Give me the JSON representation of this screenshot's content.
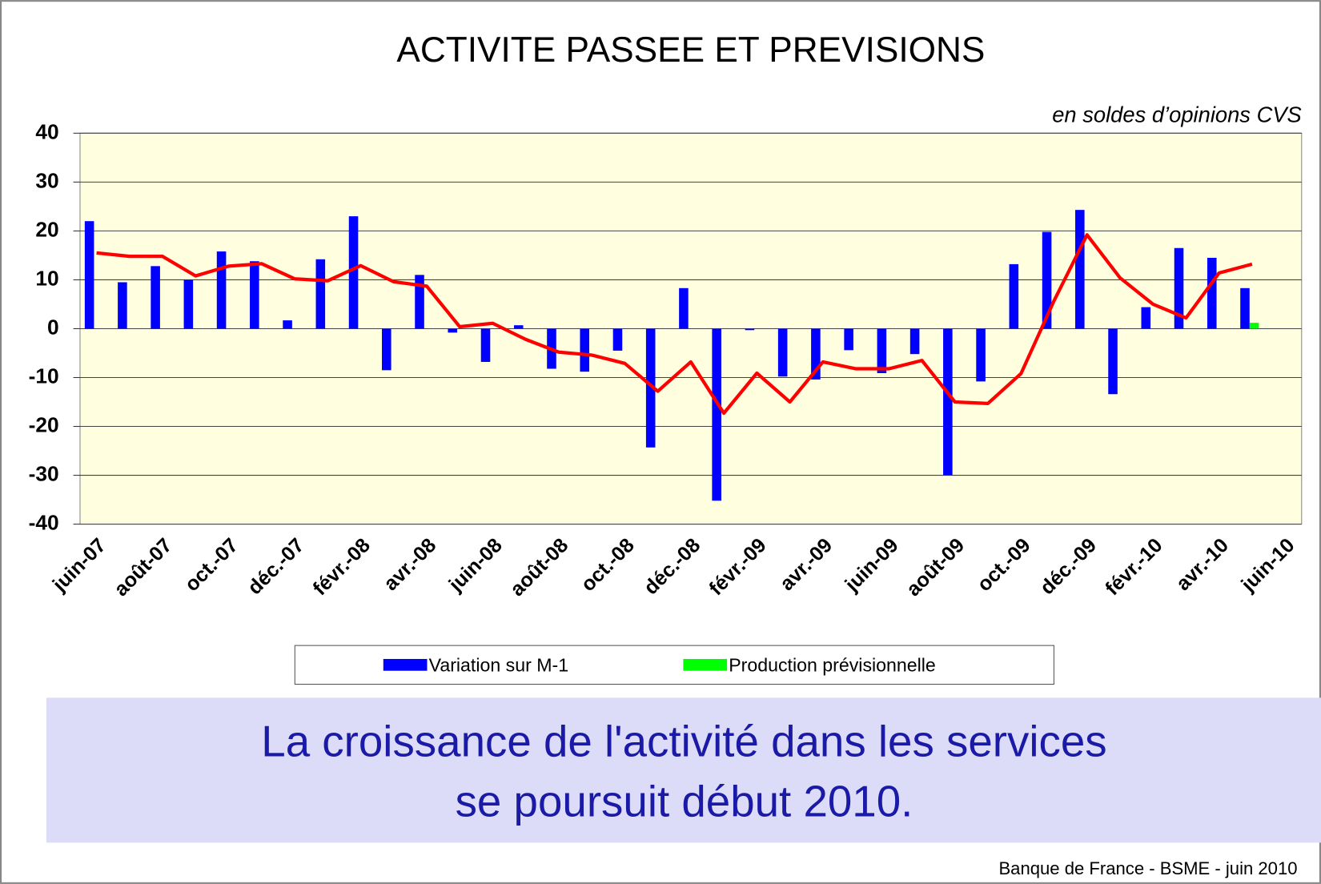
{
  "chart_data": {
    "type": "bar",
    "title": "ACTIVITE PASSEE ET PREVISIONS",
    "subtitle": "en soldes d’opinions CVS",
    "categories": [
      "juin-07",
      null,
      "août-07",
      null,
      "oct.-07",
      null,
      "déc.-07",
      null,
      "févr.-08",
      null,
      "avr.-08",
      null,
      "juin-08",
      null,
      "août-08",
      null,
      "oct.-08",
      null,
      "déc.-08",
      null,
      "févr.-09",
      null,
      "avr.-09",
      null,
      "juin-09",
      null,
      "août-09",
      null,
      "oct.-09",
      null,
      "déc.-09",
      null,
      "févr.-10",
      null,
      "avr.-10",
      null,
      "juin-10"
    ],
    "series": [
      {
        "name": "Variation sur M-1",
        "type": "bar",
        "color": "#0000ff",
        "values": [
          22,
          9.5,
          12.8,
          10,
          15.8,
          13.8,
          1.7,
          14.2,
          23,
          -8.5,
          11,
          -0.8,
          -6.8,
          0.7,
          -8.2,
          -8.8,
          -4.5,
          -24.3,
          8.3,
          -35.2,
          -0.3,
          -9.8,
          -10.4,
          -4.4,
          -9.1,
          -5.2,
          -30,
          -10.8,
          13.2,
          19.8,
          24.3,
          -13.4,
          4.4,
          16.5,
          14.5,
          8.3,
          null
        ]
      },
      {
        "name": "Production prévisionnelle",
        "type": "bar",
        "color": "#00ff00",
        "values": [
          null,
          null,
          null,
          null,
          null,
          null,
          null,
          null,
          null,
          null,
          null,
          null,
          null,
          null,
          null,
          null,
          null,
          null,
          null,
          null,
          null,
          null,
          null,
          null,
          null,
          null,
          null,
          null,
          null,
          null,
          null,
          null,
          null,
          null,
          null,
          1.2,
          null
        ]
      },
      {
        "type": "line",
        "color": "#ff0000",
        "values": [
          15.5,
          14.8,
          14.8,
          10.8,
          12.8,
          13.3,
          10.2,
          9.8,
          12.9,
          9.6,
          8.7,
          0.4,
          1.1,
          -2.2,
          -4.8,
          -5.4,
          -7.1,
          -12.8,
          -6.8,
          -17.3,
          -9.1,
          -15,
          -6.8,
          -8.2,
          -8.2,
          -6.5,
          -15,
          -15.3,
          -9.2,
          5.7,
          19.2,
          10.4,
          5,
          2.2,
          11.4,
          13.2,
          null
        ]
      }
    ],
    "ylim": [
      -40,
      40
    ],
    "yticks": [
      -40,
      -30,
      -20,
      -10,
      0,
      10,
      20,
      30,
      40
    ],
    "grid": true,
    "legend": "bottom"
  },
  "headline": [
    "La croissance de l'activité dans les services",
    "se poursuit début 2010."
  ],
  "source": "Banque de France - BSME - juin 2010"
}
